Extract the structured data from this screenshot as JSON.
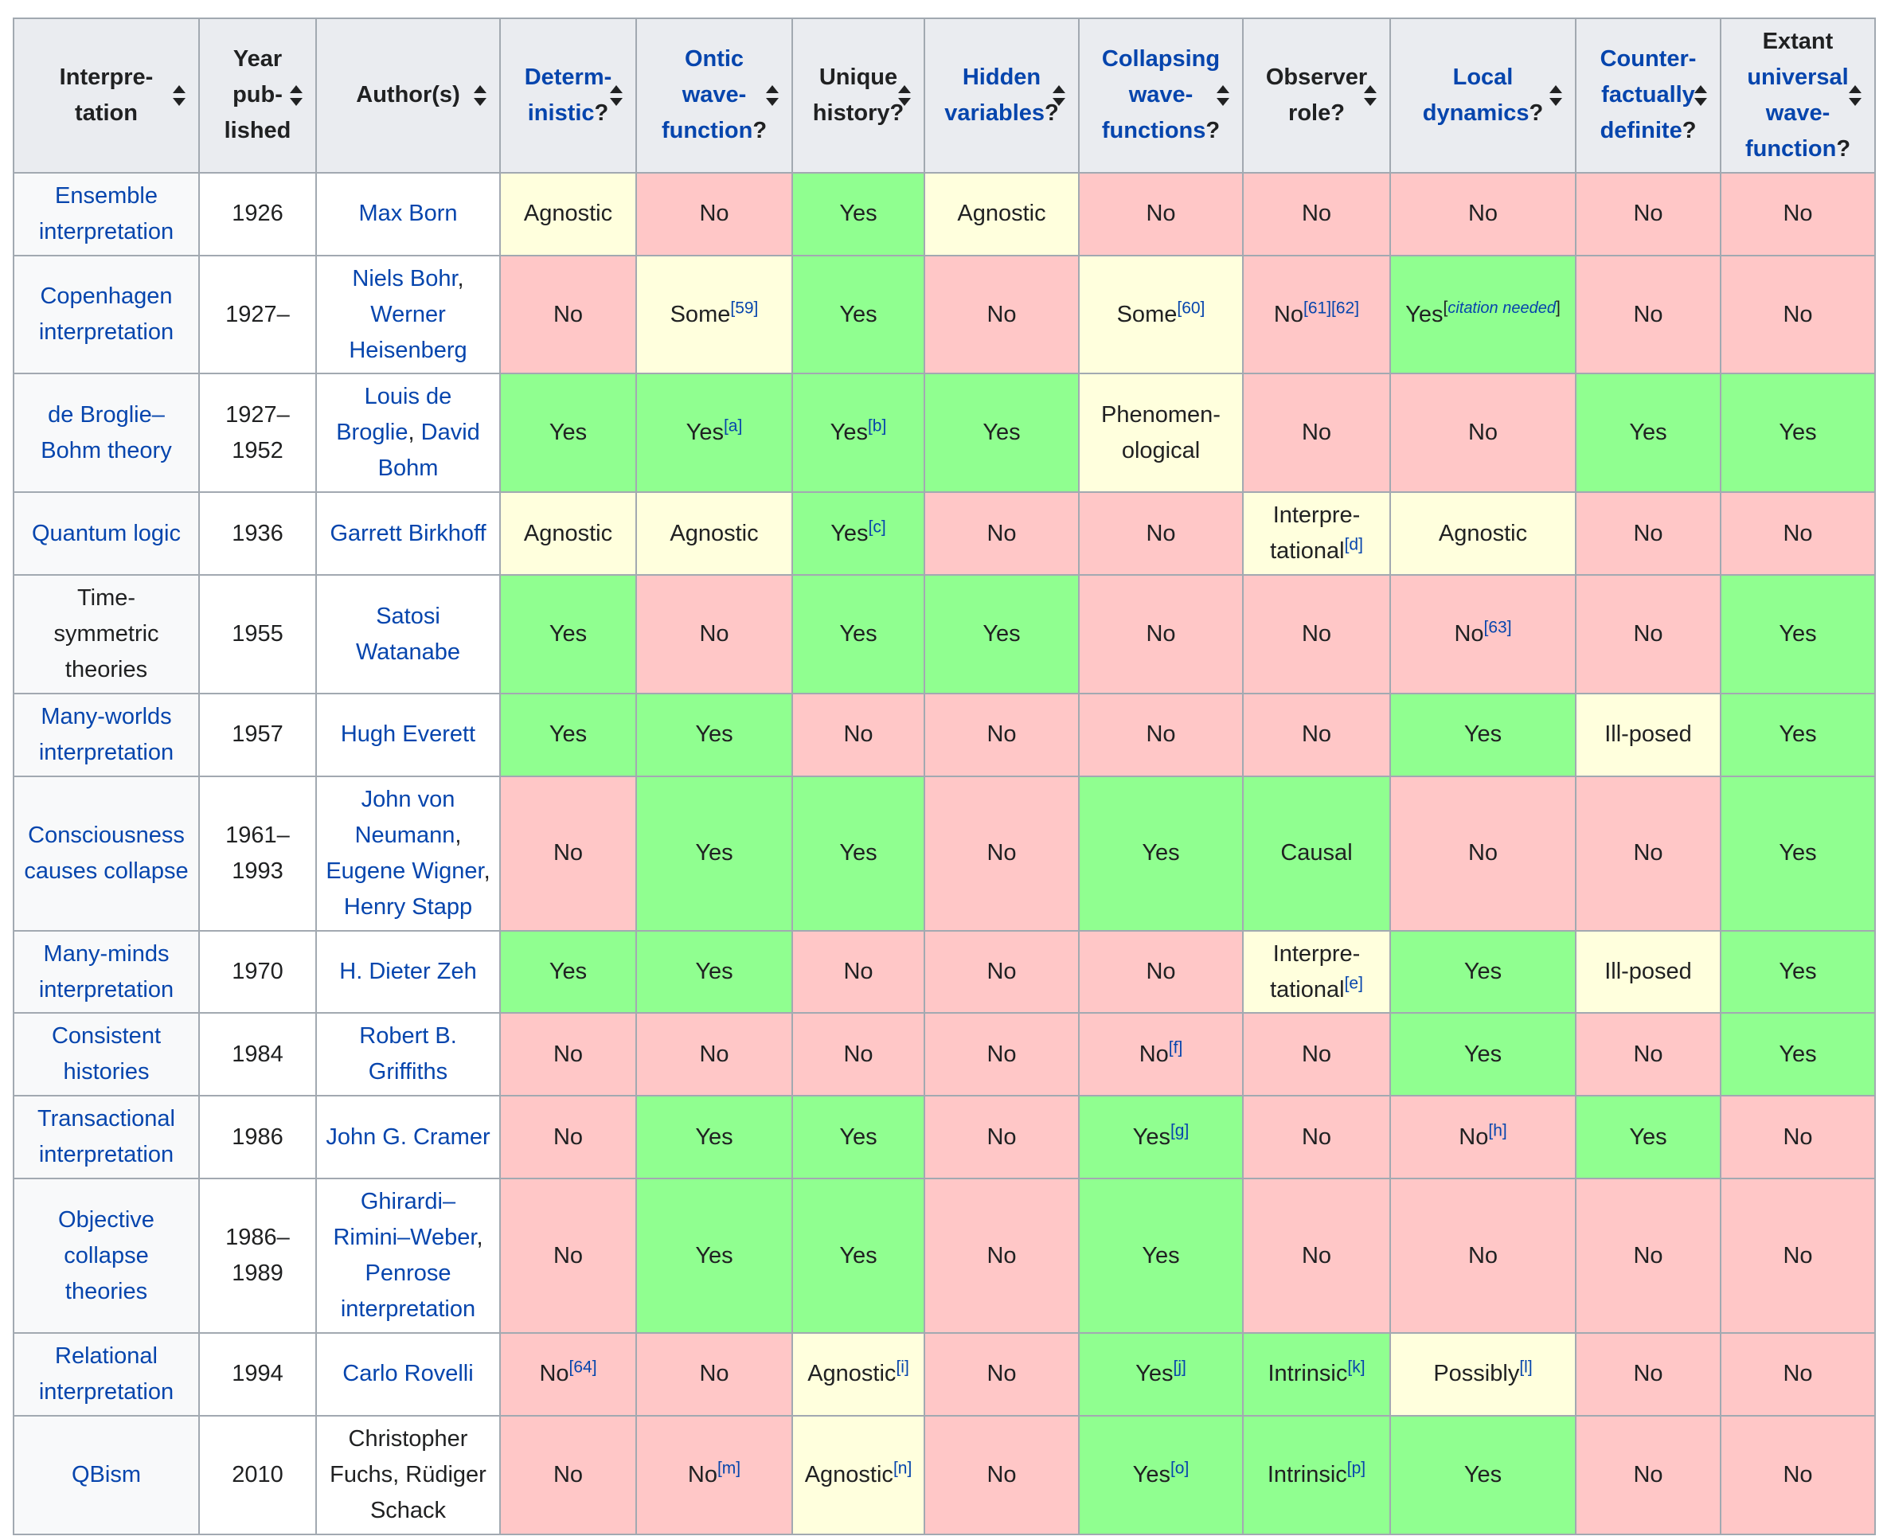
{
  "colors": {
    "yes": "#90ff90",
    "no": "#ffc7c7",
    "neutral": "#ffffdd",
    "header": "#eaecf0",
    "rowhead": "#f8f9fa",
    "link": "#0645ad"
  },
  "headers": [
    {
      "lines": [
        "Interpre-",
        "tation"
      ],
      "links": [
        false,
        false
      ],
      "suffix": ""
    },
    {
      "lines": [
        "Year",
        "pub-",
        "lished"
      ],
      "links": [
        false,
        false,
        false
      ],
      "suffix": ""
    },
    {
      "lines": [
        "Author(s)"
      ],
      "links": [
        false
      ],
      "suffix": ""
    },
    {
      "lines": [
        "Determ-",
        "inistic"
      ],
      "links": [
        true,
        true
      ],
      "suffix": "?"
    },
    {
      "lines": [
        "Ontic",
        "wave-",
        "function"
      ],
      "links": [
        true,
        true,
        true
      ],
      "suffix": "?"
    },
    {
      "lines": [
        "Unique",
        "history?"
      ],
      "links": [
        false,
        false
      ],
      "suffix": ""
    },
    {
      "lines": [
        "Hidden",
        "variables"
      ],
      "links": [
        true,
        true
      ],
      "suffix": "?"
    },
    {
      "lines": [
        "Collapsing",
        "wave-",
        "functions"
      ],
      "links": [
        true,
        true,
        true
      ],
      "suffix": "?"
    },
    {
      "lines": [
        "Observer",
        "role?"
      ],
      "links": [
        false,
        false
      ],
      "suffix": ""
    },
    {
      "lines": [
        "Local",
        "dynamics"
      ],
      "links": [
        true,
        true
      ],
      "suffix": "?"
    },
    {
      "lines": [
        "Counter-",
        "factually",
        "definite"
      ],
      "links": [
        true,
        true,
        true
      ],
      "suffix": "?"
    },
    {
      "lines": [
        "Extant",
        "universal",
        "wave-",
        "function"
      ],
      "links": [
        false,
        true,
        true,
        true
      ],
      "suffix": "?"
    }
  ],
  "rows": [
    {
      "name": [
        "Ensemble",
        "interpretation"
      ],
      "name_link": true,
      "year": [
        "1926"
      ],
      "authors": [
        [
          "Max Born"
        ]
      ],
      "author_link": true,
      "cells": [
        [
          "Agnostic",
          "neu",
          ""
        ],
        [
          "No",
          "no",
          ""
        ],
        [
          "Yes",
          "yes",
          ""
        ],
        [
          "Agnostic",
          "neu",
          ""
        ],
        [
          "No",
          "no",
          ""
        ],
        [
          "No",
          "no",
          ""
        ],
        [
          "No",
          "no",
          ""
        ],
        [
          "No",
          "no",
          ""
        ],
        [
          "No",
          "no",
          ""
        ]
      ]
    },
    {
      "name": [
        "Copenhagen",
        "interpretation"
      ],
      "name_link": true,
      "year": [
        "1927–"
      ],
      "authors": [
        [
          "Niels Bohr",
          ","
        ],
        [
          "Werner"
        ],
        [
          "Heisenberg"
        ]
      ],
      "author_link": true,
      "cells": [
        [
          "No",
          "no",
          ""
        ],
        [
          "Some",
          "neu",
          "[59]"
        ],
        [
          "Yes",
          "yes",
          ""
        ],
        [
          "No",
          "no",
          ""
        ],
        [
          "Some",
          "neu",
          "[60]"
        ],
        [
          "No",
          "no",
          "[61][62]"
        ],
        [
          "Yes",
          "yes",
          "citation needed"
        ],
        [
          "No",
          "no",
          ""
        ],
        [
          "No",
          "no",
          ""
        ]
      ]
    },
    {
      "name": [
        "de Broglie–",
        "Bohm theory"
      ],
      "name_link": true,
      "year": [
        "1927–",
        "1952"
      ],
      "authors": [
        [
          "Louis de"
        ],
        [
          "Broglie",
          ", David"
        ],
        [
          "Bohm"
        ]
      ],
      "author_link": true,
      "cells": [
        [
          "Yes",
          "yes",
          ""
        ],
        [
          "Yes",
          "yes",
          "[a]"
        ],
        [
          "Yes",
          "yes",
          "[b]"
        ],
        [
          "Yes",
          "yes",
          ""
        ],
        [
          "Phenomen-|ological",
          "neu",
          ""
        ],
        [
          "No",
          "no",
          ""
        ],
        [
          "No",
          "no",
          ""
        ],
        [
          "Yes",
          "yes",
          ""
        ],
        [
          "Yes",
          "yes",
          ""
        ]
      ]
    },
    {
      "name": [
        "Quantum logic"
      ],
      "name_link": true,
      "year": [
        "1936"
      ],
      "authors": [
        [
          "Garrett Birkhoff"
        ]
      ],
      "author_link": true,
      "cells": [
        [
          "Agnostic",
          "neu",
          ""
        ],
        [
          "Agnostic",
          "neu",
          ""
        ],
        [
          "Yes",
          "yes",
          "[c]"
        ],
        [
          "No",
          "no",
          ""
        ],
        [
          "No",
          "no",
          ""
        ],
        [
          "Interpre-|tational",
          "neu",
          "[d]"
        ],
        [
          "Agnostic",
          "neu",
          ""
        ],
        [
          "No",
          "no",
          ""
        ],
        [
          "No",
          "no",
          ""
        ]
      ]
    },
    {
      "name": [
        "Time-",
        "symmetric",
        "theories"
      ],
      "name_link": false,
      "year": [
        "1955"
      ],
      "authors": [
        [
          "Satosi"
        ],
        [
          "Watanabe"
        ]
      ],
      "author_link": true,
      "cells": [
        [
          "Yes",
          "yes",
          ""
        ],
        [
          "No",
          "no",
          ""
        ],
        [
          "Yes",
          "yes",
          ""
        ],
        [
          "Yes",
          "yes",
          ""
        ],
        [
          "No",
          "no",
          ""
        ],
        [
          "No",
          "no",
          ""
        ],
        [
          "No",
          "no",
          "[63]"
        ],
        [
          "No",
          "no",
          ""
        ],
        [
          "Yes",
          "yes",
          ""
        ]
      ]
    },
    {
      "name": [
        "Many-worlds",
        "interpretation"
      ],
      "name_link": true,
      "year": [
        "1957"
      ],
      "authors": [
        [
          "Hugh Everett"
        ]
      ],
      "author_link": true,
      "cells": [
        [
          "Yes",
          "yes",
          ""
        ],
        [
          "Yes",
          "yes",
          ""
        ],
        [
          "No",
          "no",
          ""
        ],
        [
          "No",
          "no",
          ""
        ],
        [
          "No",
          "no",
          ""
        ],
        [
          "No",
          "no",
          ""
        ],
        [
          "Yes",
          "yes",
          ""
        ],
        [
          "Ill-posed",
          "neu",
          ""
        ],
        [
          "Yes",
          "yes",
          ""
        ]
      ]
    },
    {
      "name": [
        "Consciousness",
        "causes collapse"
      ],
      "name_link": true,
      "year": [
        "1961–",
        "1993"
      ],
      "authors": [
        [
          "John von"
        ],
        [
          "Neumann",
          ","
        ],
        [
          "Eugene Wigner",
          ","
        ],
        [
          "Henry Stapp"
        ]
      ],
      "author_link": true,
      "cells": [
        [
          "No",
          "no",
          ""
        ],
        [
          "Yes",
          "yes",
          ""
        ],
        [
          "Yes",
          "yes",
          ""
        ],
        [
          "No",
          "no",
          ""
        ],
        [
          "Yes",
          "yes",
          ""
        ],
        [
          "Causal",
          "yes",
          ""
        ],
        [
          "No",
          "no",
          ""
        ],
        [
          "No",
          "no",
          ""
        ],
        [
          "Yes",
          "yes",
          ""
        ]
      ]
    },
    {
      "name": [
        "Many-minds",
        "interpretation"
      ],
      "name_link": true,
      "year": [
        "1970"
      ],
      "authors": [
        [
          "H. Dieter Zeh"
        ]
      ],
      "author_link": true,
      "cells": [
        [
          "Yes",
          "yes",
          ""
        ],
        [
          "Yes",
          "yes",
          ""
        ],
        [
          "No",
          "no",
          ""
        ],
        [
          "No",
          "no",
          ""
        ],
        [
          "No",
          "no",
          ""
        ],
        [
          "Interpre-|tational",
          "neu",
          "[e]"
        ],
        [
          "Yes",
          "yes",
          ""
        ],
        [
          "Ill-posed",
          "neu",
          ""
        ],
        [
          "Yes",
          "yes",
          ""
        ]
      ]
    },
    {
      "name": [
        "Consistent",
        "histories"
      ],
      "name_link": true,
      "year": [
        "1984"
      ],
      "authors": [
        [
          "Robert B."
        ],
        [
          "Griffiths"
        ]
      ],
      "author_link": true,
      "cells": [
        [
          "No",
          "no",
          ""
        ],
        [
          "No",
          "no",
          ""
        ],
        [
          "No",
          "no",
          ""
        ],
        [
          "No",
          "no",
          ""
        ],
        [
          "No",
          "no",
          "[f]"
        ],
        [
          "No",
          "no",
          ""
        ],
        [
          "Yes",
          "yes",
          ""
        ],
        [
          "No",
          "no",
          ""
        ],
        [
          "Yes",
          "yes",
          ""
        ]
      ]
    },
    {
      "name": [
        "Transactional",
        "interpretation"
      ],
      "name_link": true,
      "year": [
        "1986"
      ],
      "authors": [
        [
          "John G. Cramer"
        ]
      ],
      "author_link": true,
      "cells": [
        [
          "No",
          "no",
          ""
        ],
        [
          "Yes",
          "yes",
          ""
        ],
        [
          "Yes",
          "yes",
          ""
        ],
        [
          "No",
          "no",
          ""
        ],
        [
          "Yes",
          "yes",
          "[g]"
        ],
        [
          "No",
          "no",
          ""
        ],
        [
          "No",
          "no",
          "[h]"
        ],
        [
          "Yes",
          "yes",
          ""
        ],
        [
          "No",
          "no",
          ""
        ]
      ]
    },
    {
      "name": [
        "Objective",
        "collapse",
        "theories"
      ],
      "name_link": true,
      "year": [
        "1986–",
        "1989"
      ],
      "authors": [
        [
          "Ghirardi–"
        ],
        [
          "Rimini–Weber",
          ","
        ],
        [
          "Penrose"
        ],
        [
          "interpretation"
        ]
      ],
      "author_link": true,
      "cells": [
        [
          "No",
          "no",
          ""
        ],
        [
          "Yes",
          "yes",
          ""
        ],
        [
          "Yes",
          "yes",
          ""
        ],
        [
          "No",
          "no",
          ""
        ],
        [
          "Yes",
          "yes",
          ""
        ],
        [
          "No",
          "no",
          ""
        ],
        [
          "No",
          "no",
          ""
        ],
        [
          "No",
          "no",
          ""
        ],
        [
          "No",
          "no",
          ""
        ]
      ]
    },
    {
      "name": [
        "Relational",
        "interpretation"
      ],
      "name_link": true,
      "year": [
        "1994"
      ],
      "authors": [
        [
          "Carlo Rovelli"
        ]
      ],
      "author_link": true,
      "cells": [
        [
          "No",
          "no",
          "[64]"
        ],
        [
          "No",
          "no",
          ""
        ],
        [
          "Agnostic",
          "neu",
          "[i]"
        ],
        [
          "No",
          "no",
          ""
        ],
        [
          "Yes",
          "yes",
          "[j]"
        ],
        [
          "Intrinsic",
          "yes",
          "[k]"
        ],
        [
          "Possibly",
          "neu",
          "[l]"
        ],
        [
          "No",
          "no",
          ""
        ],
        [
          "No",
          "no",
          ""
        ]
      ]
    },
    {
      "name": [
        "QBism"
      ],
      "name_link": true,
      "year": [
        "2010"
      ],
      "authors": [
        [
          "Christopher"
        ],
        [
          "Fuchs, Rüdiger"
        ],
        [
          "Schack"
        ]
      ],
      "author_link": false,
      "cells": [
        [
          "No",
          "no",
          ""
        ],
        [
          "No",
          "no",
          "[m]"
        ],
        [
          "Agnostic",
          "neu",
          "[n]"
        ],
        [
          "No",
          "no",
          ""
        ],
        [
          "Yes",
          "yes",
          "[o]"
        ],
        [
          "Intrinsic",
          "yes",
          "[p]"
        ],
        [
          "Yes",
          "yes",
          ""
        ],
        [
          "No",
          "no",
          ""
        ],
        [
          "No",
          "no",
          ""
        ]
      ]
    }
  ]
}
